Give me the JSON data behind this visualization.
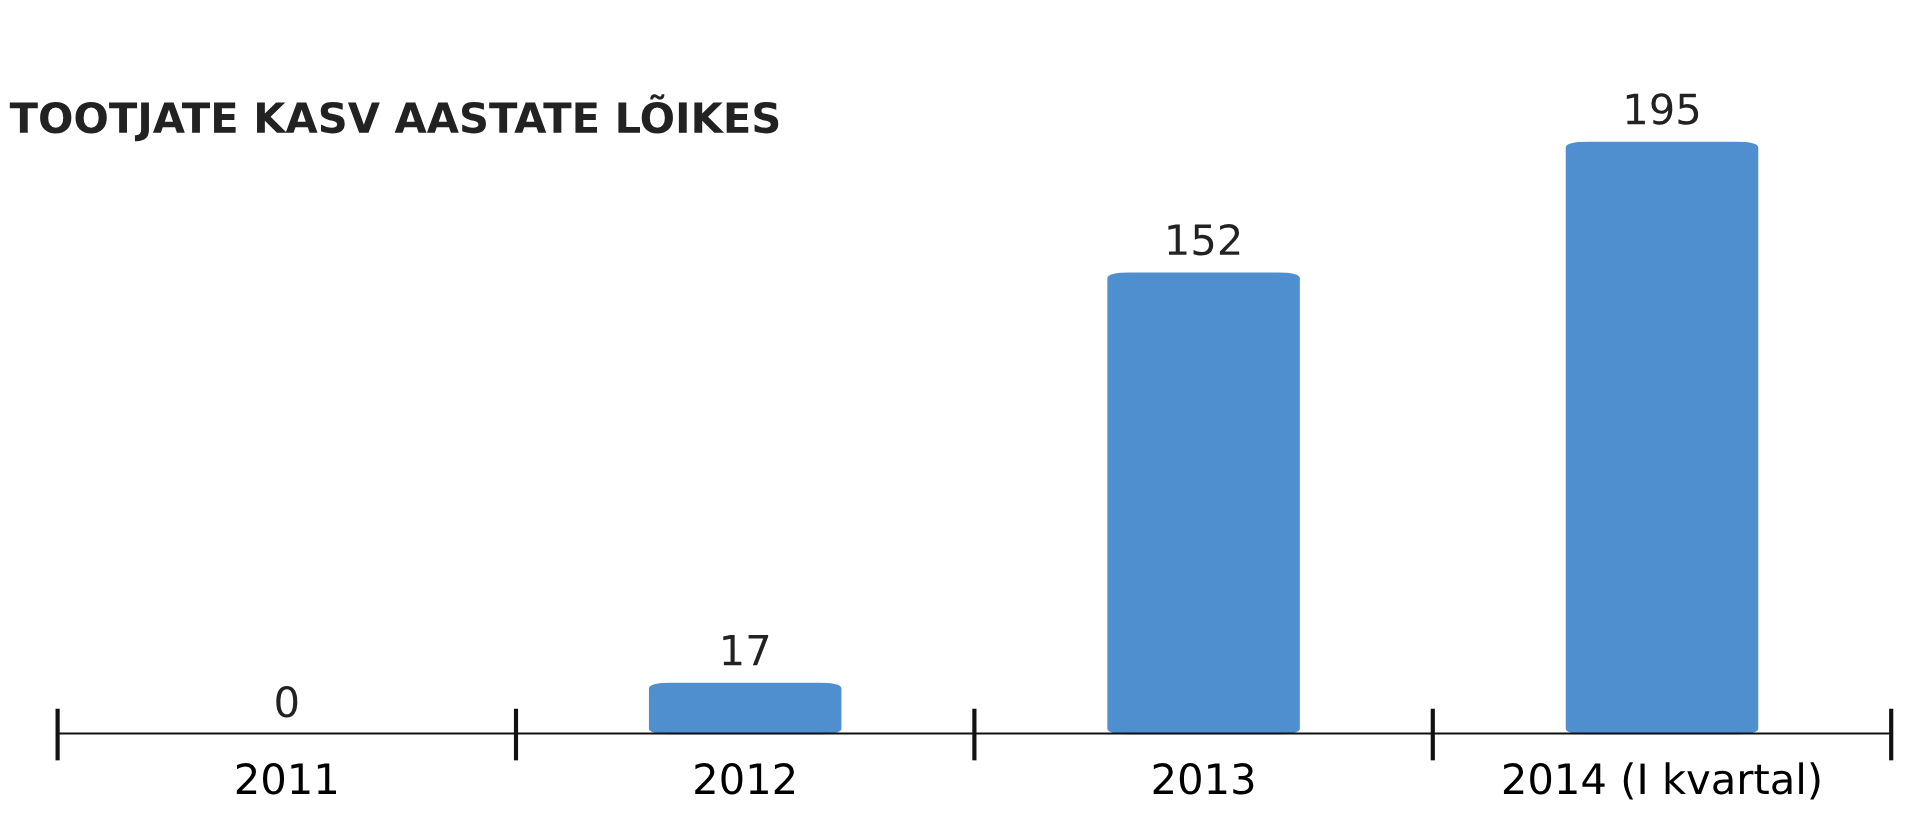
{
  "chart_data": {
    "type": "bar",
    "title": "TOOTJATE KASV AASTATE LÕIKES",
    "categories": [
      "2011",
      "2012",
      "2013",
      "2014 (I kvartal)"
    ],
    "values": [
      0,
      17,
      152,
      195
    ],
    "color": "#4f8fd0",
    "data_labels": true
  }
}
